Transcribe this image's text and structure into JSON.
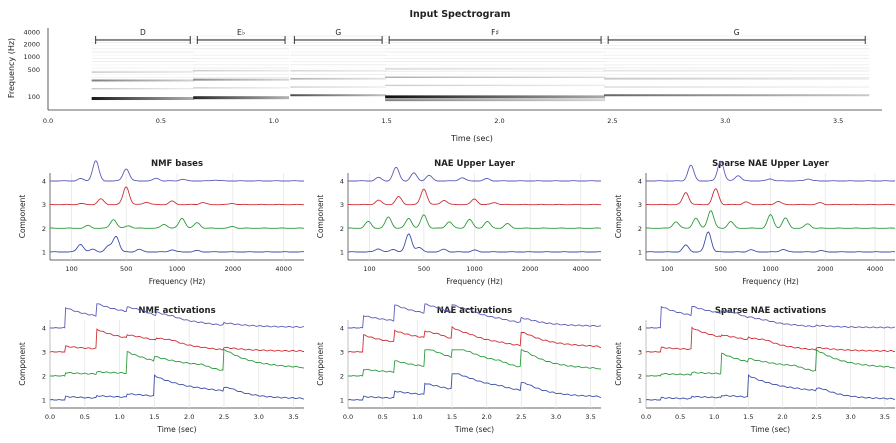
{
  "spectrogram": {
    "title": "Input Spectrogram",
    "xlabel": "Time (sec)",
    "ylabel": "Frequency (Hz)",
    "yticks": [
      {
        "label": "4000",
        "frac": 0.0
      },
      {
        "label": "2000",
        "frac": 0.16
      },
      {
        "label": "1000",
        "frac": 0.33
      },
      {
        "label": "500",
        "frac": 0.51
      },
      {
        "label": "100",
        "frac": 0.87
      }
    ],
    "xticks": [
      "0.0",
      "0.5",
      "1.0",
      "1.5",
      "2.0",
      "2.5",
      "3.0",
      "3.5"
    ],
    "xlim": [
      0,
      3.65
    ],
    "notes": [
      {
        "label": "D",
        "start": 0.22,
        "end": 0.63
      },
      {
        "label": "E♭",
        "start": 0.67,
        "end": 1.05
      },
      {
        "label": "G",
        "start": 1.1,
        "end": 1.48
      },
      {
        "label": "F♯",
        "start": 1.52,
        "end": 2.45
      },
      {
        "label": "G",
        "start": 2.49,
        "end": 3.62
      }
    ],
    "bands": [
      {
        "segment": 0,
        "rows": [
          0.54,
          0.64,
          0.74,
          0.86
        ],
        "dark": [
          0.18,
          0.5,
          0.22,
          0.9
        ]
      },
      {
        "segment": 1,
        "rows": [
          0.52,
          0.63,
          0.73,
          0.85
        ],
        "dark": [
          0.2,
          0.45,
          0.2,
          0.85
        ]
      },
      {
        "segment": 2,
        "rows": [
          0.52,
          0.62,
          0.72,
          0.82
        ],
        "dark": [
          0.15,
          0.35,
          0.2,
          0.7
        ]
      },
      {
        "segment": 3,
        "rows": [
          0.5,
          0.6,
          0.7,
          0.84,
          0.88
        ],
        "dark": [
          0.15,
          0.3,
          0.2,
          0.95,
          0.5
        ]
      },
      {
        "segment": 4,
        "rows": [
          0.52,
          0.62,
          0.72,
          0.82
        ],
        "dark": [
          0.1,
          0.25,
          0.15,
          0.6
        ]
      }
    ]
  },
  "ylabel_component": "Component",
  "bases_xlabel": "Frequency (Hz)",
  "activ_xlabel": "Time (sec)",
  "bases_xticks": [
    "100",
    "500",
    "1000",
    "2000",
    "4000"
  ],
  "activ_xticks": [
    "0.0",
    "0.5",
    "1.0",
    "1.5",
    "2.0",
    "2.5",
    "3.0",
    "3.5"
  ],
  "component_ticks": [
    "1",
    "2",
    "3",
    "4"
  ],
  "colors": {
    "c1": "#3b4fa8",
    "c2": "#2e9a3e",
    "c3": "#cf2f34",
    "c4": "#5b5bb8"
  },
  "chart_data": [
    {
      "type": "line",
      "title": "NMF bases",
      "xlabel": "Frequency (Hz)",
      "ylabel": "Component",
      "series": [
        {
          "name": "1",
          "peaks": [
            [
              0.12,
              0.35
            ],
            [
              0.17,
              0.12
            ],
            [
              0.23,
              0.25
            ],
            [
              0.26,
              0.7
            ],
            [
              0.35,
              0.12
            ],
            [
              0.48,
              0.1
            ],
            [
              0.58,
              0.06
            ]
          ]
        },
        {
          "name": "2",
          "peaks": [
            [
              0.15,
              0.12
            ],
            [
              0.25,
              0.4
            ],
            [
              0.31,
              0.12
            ],
            [
              0.45,
              0.18
            ],
            [
              0.52,
              0.45
            ],
            [
              0.58,
              0.25
            ],
            [
              0.72,
              0.08
            ]
          ]
        },
        {
          "name": "3",
          "peaks": [
            [
              0.12,
              0.05
            ],
            [
              0.2,
              0.25
            ],
            [
              0.3,
              0.8
            ],
            [
              0.38,
              0.12
            ],
            [
              0.48,
              0.15
            ],
            [
              0.6,
              0.1
            ],
            [
              0.72,
              0.06
            ]
          ]
        },
        {
          "name": "4",
          "peaks": [
            [
              0.12,
              0.1
            ],
            [
              0.18,
              0.9
            ],
            [
              0.3,
              0.55
            ],
            [
              0.42,
              0.12
            ],
            [
              0.52,
              0.08
            ],
            [
              0.65,
              0.05
            ]
          ]
        }
      ]
    },
    {
      "type": "line",
      "title": "NAE Upper Layer",
      "xlabel": "Frequency (Hz)",
      "ylabel": "Component",
      "series": [
        {
          "name": "1",
          "peaks": [
            [
              0.12,
              0.15
            ],
            [
              0.18,
              0.12
            ],
            [
              0.24,
              0.8
            ],
            [
              0.28,
              0.2
            ],
            [
              0.38,
              0.12
            ],
            [
              0.5,
              0.08
            ]
          ]
        },
        {
          "name": "2",
          "peaks": [
            [
              0.08,
              0.3
            ],
            [
              0.16,
              0.5
            ],
            [
              0.24,
              0.45
            ],
            [
              0.3,
              0.6
            ],
            [
              0.4,
              0.3
            ],
            [
              0.48,
              0.4
            ],
            [
              0.55,
              0.3
            ],
            [
              0.63,
              0.2
            ]
          ]
        },
        {
          "name": "3",
          "peaks": [
            [
              0.12,
              0.2
            ],
            [
              0.2,
              0.35
            ],
            [
              0.3,
              0.7
            ],
            [
              0.38,
              0.2
            ],
            [
              0.5,
              0.25
            ],
            [
              0.58,
              0.1
            ]
          ]
        },
        {
          "name": "4",
          "peaks": [
            [
              0.12,
              0.15
            ],
            [
              0.19,
              0.6
            ],
            [
              0.26,
              0.35
            ],
            [
              0.32,
              0.25
            ],
            [
              0.45,
              0.15
            ],
            [
              0.55,
              0.1
            ]
          ]
        }
      ]
    },
    {
      "type": "line",
      "title": "Sparse NAE Upper Layer",
      "xlabel": "Frequency (Hz)",
      "ylabel": "Component",
      "series": [
        {
          "name": "1",
          "peaks": [
            [
              0.16,
              0.3
            ],
            [
              0.25,
              0.9
            ],
            [
              0.42,
              0.1
            ],
            [
              0.55,
              0.12
            ],
            [
              0.7,
              0.06
            ]
          ]
        },
        {
          "name": "2",
          "peaks": [
            [
              0.12,
              0.3
            ],
            [
              0.2,
              0.45
            ],
            [
              0.26,
              0.8
            ],
            [
              0.34,
              0.3
            ],
            [
              0.5,
              0.6
            ],
            [
              0.56,
              0.45
            ],
            [
              0.65,
              0.2
            ]
          ]
        },
        {
          "name": "3",
          "peaks": [
            [
              0.16,
              0.55
            ],
            [
              0.28,
              0.7
            ],
            [
              0.4,
              0.12
            ],
            [
              0.53,
              0.15
            ],
            [
              0.7,
              0.08
            ]
          ]
        },
        {
          "name": "4",
          "peaks": [
            [
              0.18,
              0.7
            ],
            [
              0.3,
              0.9
            ],
            [
              0.37,
              0.25
            ],
            [
              0.5,
              0.1
            ],
            [
              0.65,
              0.1
            ]
          ]
        }
      ]
    },
    {
      "type": "line",
      "title": "NMF activations",
      "xlabel": "Time (sec)",
      "ylabel": "Component",
      "xlim": [
        0,
        3.65
      ],
      "series": [
        {
          "name": "1",
          "events": [
            [
              0.22,
              0.15
            ],
            [
              0.67,
              0.1
            ],
            [
              1.1,
              0.15
            ],
            [
              1.5,
              0.9
            ],
            [
              2.49,
              0.15
            ]
          ]
        },
        {
          "name": "2",
          "events": [
            [
              0.22,
              0.15
            ],
            [
              0.67,
              0.1
            ],
            [
              1.1,
              0.95
            ],
            [
              1.5,
              0.2
            ],
            [
              2.49,
              0.95
            ]
          ]
        },
        {
          "name": "3",
          "events": [
            [
              0.22,
              0.25
            ],
            [
              0.67,
              0.85
            ],
            [
              1.1,
              0.15
            ],
            [
              1.52,
              0.1
            ],
            [
              2.49,
              0.1
            ]
          ]
        },
        {
          "name": "4",
          "events": [
            [
              0.22,
              0.9
            ],
            [
              0.67,
              0.55
            ],
            [
              1.1,
              0.2
            ],
            [
              1.52,
              0.15
            ],
            [
              2.49,
              0.1
            ]
          ]
        }
      ]
    },
    {
      "type": "line",
      "title": "NAE activations",
      "xlabel": "Time (sec)",
      "ylabel": "Component",
      "xlim": [
        0,
        3.65
      ],
      "series": [
        {
          "name": "1",
          "events": [
            [
              0.22,
              0.15
            ],
            [
              0.67,
              0.3
            ],
            [
              1.1,
              0.5
            ],
            [
              1.5,
              0.8
            ],
            [
              2.49,
              0.35
            ]
          ]
        },
        {
          "name": "2",
          "events": [
            [
              0.22,
              0.3
            ],
            [
              0.67,
              0.5
            ],
            [
              1.1,
              0.85
            ],
            [
              1.5,
              0.55
            ],
            [
              2.49,
              0.8
            ]
          ]
        },
        {
          "name": "3",
          "events": [
            [
              0.22,
              0.75
            ],
            [
              0.67,
              0.5
            ],
            [
              1.1,
              0.3
            ],
            [
              1.5,
              0.5
            ],
            [
              2.49,
              0.6
            ]
          ]
        },
        {
          "name": "4",
          "events": [
            [
              0.22,
              0.55
            ],
            [
              0.67,
              0.7
            ],
            [
              1.1,
              0.4
            ],
            [
              1.5,
              0.35
            ],
            [
              2.49,
              0.2
            ]
          ]
        }
      ]
    },
    {
      "type": "line",
      "title": "Sparse NAE activations",
      "xlabel": "Time (sec)",
      "ylabel": "Component",
      "xlim": [
        0,
        3.65
      ],
      "series": [
        {
          "name": "1",
          "events": [
            [
              0.22,
              0.1
            ],
            [
              0.67,
              0.1
            ],
            [
              1.1,
              0.1
            ],
            [
              1.5,
              0.95
            ],
            [
              2.49,
              0.1
            ]
          ]
        },
        {
          "name": "2",
          "events": [
            [
              0.22,
              0.1
            ],
            [
              0.67,
              0.1
            ],
            [
              1.1,
              0.9
            ],
            [
              1.5,
              0.15
            ],
            [
              2.49,
              0.95
            ]
          ]
        },
        {
          "name": "3",
          "events": [
            [
              0.22,
              0.2
            ],
            [
              0.67,
              0.95
            ],
            [
              1.1,
              0.1
            ],
            [
              1.5,
              0.1
            ],
            [
              2.49,
              0.1
            ]
          ]
        },
        {
          "name": "4",
          "events": [
            [
              0.22,
              0.95
            ],
            [
              0.67,
              0.4
            ],
            [
              1.1,
              0.1
            ],
            [
              1.5,
              0.05
            ],
            [
              2.49,
              0.05
            ]
          ]
        }
      ]
    }
  ]
}
